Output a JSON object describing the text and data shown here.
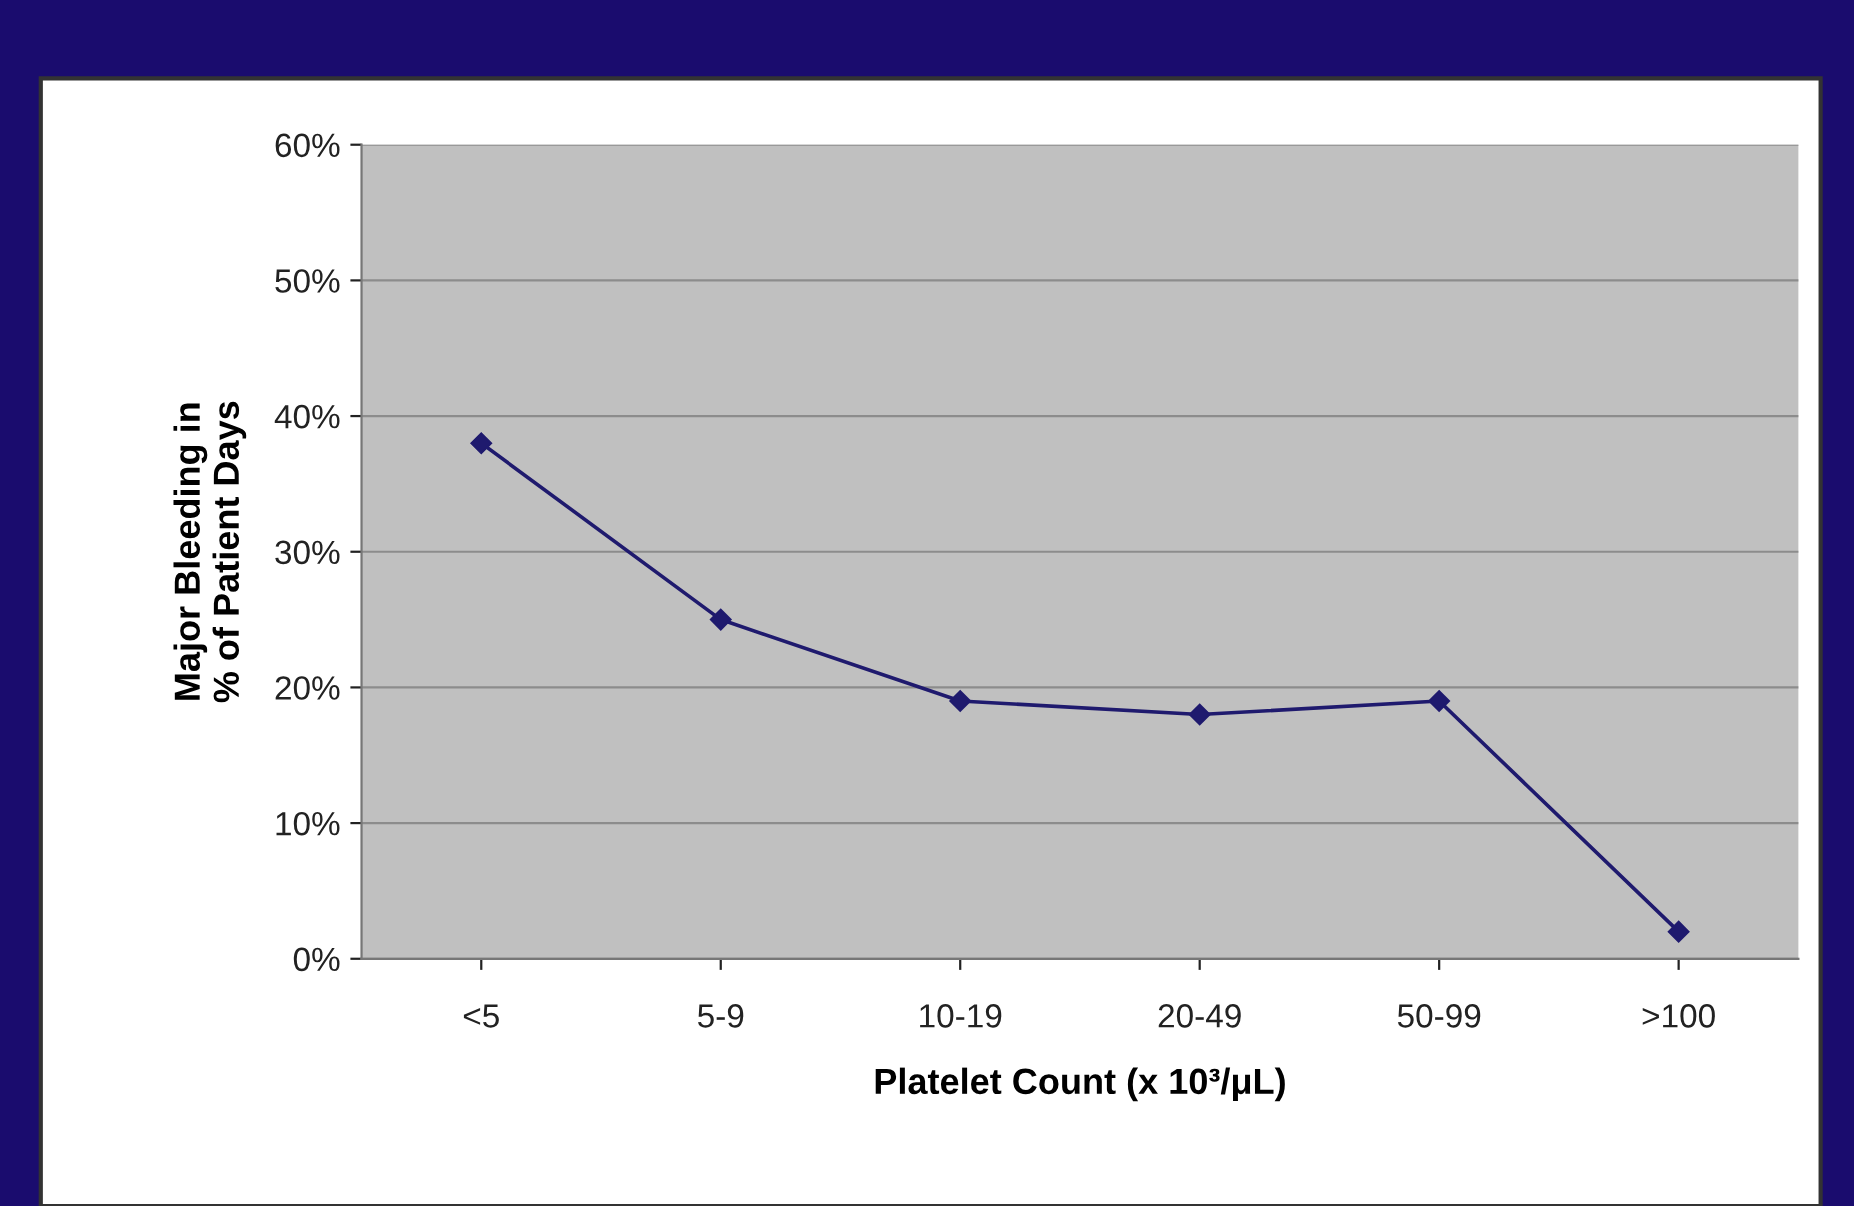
{
  "chart_data": {
    "type": "line",
    "xlabel": "Platelet Count (x 10³/μL)",
    "ylabel": "Major Bleeding in\n% of Patient Days",
    "categories": [
      "<5",
      "5-9",
      "10-19",
      "20-49",
      "50-99",
      ">100"
    ],
    "series": [
      {
        "color": "#1f1a6e",
        "values": [
          38,
          25,
          19,
          18,
          19,
          2
        ]
      }
    ],
    "ylim": [
      0,
      60
    ],
    "yticks": [
      {
        "value": 0,
        "label": "0%"
      },
      {
        "value": 10,
        "label": "10%"
      },
      {
        "value": 20,
        "label": "20%"
      },
      {
        "value": 30,
        "label": "30%"
      },
      {
        "value": 40,
        "label": "40%"
      },
      {
        "value": 50,
        "label": "50%"
      },
      {
        "value": 60,
        "label": "60%"
      }
    ],
    "grid": "y",
    "marker": "diamond",
    "line_style": "solid",
    "legend": false
  }
}
